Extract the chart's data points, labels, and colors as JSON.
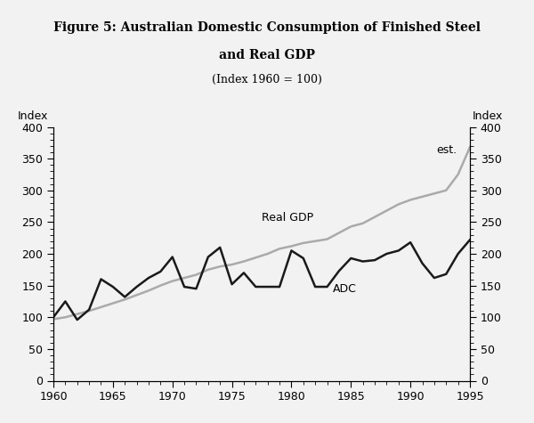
{
  "title_line1": "Figure 5: Australian Domestic Consumption of Finished Steel",
  "title_line2": "and Real GDP",
  "subtitle": "(Index 1960 = 100)",
  "ylabel_left": "Index",
  "ylabel_right": "Index",
  "xlim": [
    1960,
    1995
  ],
  "ylim": [
    0,
    400
  ],
  "yticks": [
    0,
    50,
    100,
    150,
    200,
    250,
    300,
    350,
    400
  ],
  "xticks": [
    1960,
    1965,
    1970,
    1975,
    1980,
    1985,
    1990,
    1995
  ],
  "adc_color": "#1a1a1a",
  "gdp_color": "#aaaaaa",
  "background_color": "#f0f0f0",
  "est_annotation": "est.",
  "adc_label": "ADC",
  "gdp_label": "Real GDP",
  "years": [
    1960,
    1961,
    1962,
    1963,
    1964,
    1965,
    1966,
    1967,
    1968,
    1969,
    1970,
    1971,
    1972,
    1973,
    1974,
    1975,
    1976,
    1977,
    1978,
    1979,
    1980,
    1981,
    1982,
    1983,
    1984,
    1985,
    1986,
    1987,
    1988,
    1989,
    1990,
    1991,
    1992,
    1993,
    1994,
    1995
  ],
  "adc_values": [
    100,
    125,
    96,
    112,
    160,
    148,
    132,
    148,
    162,
    172,
    195,
    148,
    145,
    195,
    210,
    152,
    170,
    148,
    148,
    148,
    205,
    193,
    148,
    148,
    173,
    193,
    188,
    190,
    200,
    205,
    218,
    185,
    162,
    168,
    200,
    222
  ],
  "gdp_values": [
    97,
    100,
    105,
    110,
    116,
    122,
    128,
    135,
    142,
    150,
    157,
    162,
    167,
    175,
    180,
    183,
    188,
    194,
    200,
    208,
    212,
    217,
    220,
    223,
    233,
    243,
    248,
    258,
    268,
    278,
    285,
    290,
    295,
    300,
    325,
    368
  ]
}
